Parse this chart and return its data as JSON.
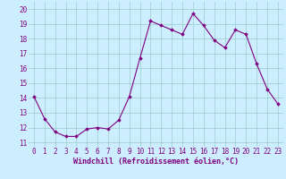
{
  "x": [
    0,
    1,
    2,
    3,
    4,
    5,
    6,
    7,
    8,
    9,
    10,
    11,
    12,
    13,
    14,
    15,
    16,
    17,
    18,
    19,
    20,
    21,
    22,
    23
  ],
  "y": [
    14.1,
    12.6,
    11.7,
    11.4,
    11.4,
    11.9,
    12.0,
    11.9,
    12.5,
    14.1,
    16.7,
    19.2,
    18.9,
    18.6,
    18.3,
    19.7,
    18.9,
    17.9,
    17.4,
    18.6,
    18.3,
    16.3,
    14.6,
    13.6
  ],
  "line_color": "#800080",
  "marker": "D",
  "markersize": 1.8,
  "linewidth": 0.8,
  "bg_color": "#cceeff",
  "grid_color": "#99cccc",
  "xlabel": "Windchill (Refroidissement éolien,°C)",
  "xlabel_fontsize": 6.0,
  "ytick_labels": [
    "11",
    "12",
    "13",
    "14",
    "15",
    "16",
    "17",
    "18",
    "19",
    "20"
  ],
  "ylim": [
    10.7,
    20.5
  ],
  "xlim": [
    -0.5,
    23.5
  ],
  "xtick_labels": [
    "0",
    "1",
    "2",
    "3",
    "4",
    "5",
    "6",
    "7",
    "8",
    "9",
    "10",
    "11",
    "12",
    "13",
    "14",
    "15",
    "16",
    "17",
    "18",
    "19",
    "20",
    "21",
    "22",
    "23"
  ],
  "tick_fontsize": 5.5,
  "tick_color": "#800080"
}
